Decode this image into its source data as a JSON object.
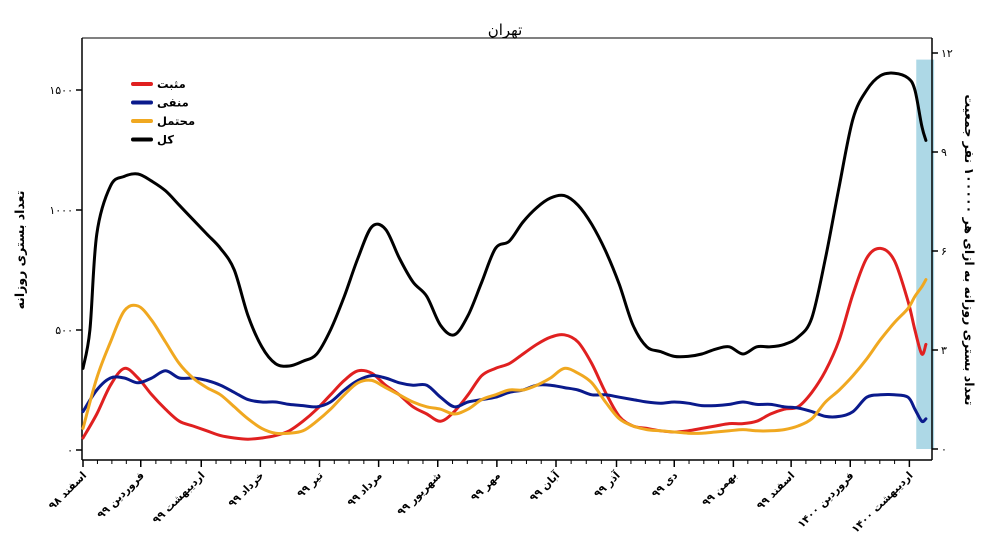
{
  "chart_data": {
    "type": "line",
    "title": "تهران",
    "ylabel_left": "تعداد بستری روزانه",
    "ylabel_right": "تعداد بستری روزانه به ازای هر ۱۰۰۰۰۰ نفر جمعیت",
    "xlim": [
      0,
      61
    ],
    "ylim_left": [
      -50,
      1650
    ],
    "ylim_right": [
      0,
      12
    ],
    "yticks_left": [
      0,
      500,
      1000,
      1500
    ],
    "ytick_labels_left": [
      "۰",
      "۵۰۰",
      "۱۰۰۰",
      "۱۵۰۰"
    ],
    "yticks_right": [
      0,
      3,
      6,
      9,
      12
    ],
    "ytick_labels_right": [
      "۰",
      "۳",
      "۶",
      "۹",
      "۱۲"
    ],
    "xticks": [
      0,
      4.2,
      8.6,
      12.9,
      17.2,
      21.5,
      25.8,
      30.1,
      34.4,
      38.8,
      43.0,
      47.3,
      51.5,
      55.8,
      60.1
    ],
    "xtick_labels": [
      "اسفند ۹۸",
      "فروردین ۹۹",
      "اردیبهشت ۹۹",
      "خرداد ۹۹",
      "تیر ۹۹",
      "مرداد ۹۹",
      "شهریور ۹۹",
      "مهر ۹۹",
      "آبان ۹۹",
      "آذر ۹۹",
      "دی ۹۹",
      "بهمن ۹۹",
      "اسفند ۹۹",
      "فروردین ۱۴۰۰",
      "اردیبهشت ۱۴۰۰"
    ],
    "grid": false,
    "legend_position": "top-left",
    "highlight_band": {
      "x_range": [
        60.6,
        61.9
      ],
      "color": "#add8e6"
    },
    "series": [
      {
        "name": "مثبت",
        "color": "#e02020",
        "x": [
          0,
          1,
          2,
          3,
          4,
          5,
          6,
          7,
          8,
          9,
          10,
          11,
          12,
          13,
          14,
          15,
          16,
          17,
          18,
          19,
          20,
          21,
          22,
          23,
          24,
          25,
          26,
          27,
          28,
          29,
          30,
          31,
          32,
          33,
          34,
          35,
          36,
          37,
          38,
          39,
          40,
          41,
          42,
          43,
          44,
          45,
          46,
          47,
          48,
          49,
          50,
          51,
          52,
          53,
          54,
          55,
          56,
          57,
          58,
          59,
          60,
          60.5,
          61,
          61.3
        ],
        "y": [
          50,
          150,
          270,
          340,
          300,
          230,
          170,
          120,
          100,
          80,
          60,
          50,
          45,
          50,
          60,
          80,
          120,
          170,
          230,
          290,
          330,
          320,
          270,
          230,
          180,
          150,
          120,
          160,
          230,
          310,
          340,
          360,
          400,
          440,
          470,
          480,
          450,
          360,
          240,
          140,
          100,
          90,
          80,
          75,
          80,
          90,
          100,
          110,
          110,
          120,
          150,
          170,
          180,
          240,
          330,
          460,
          650,
          800,
          840,
          790,
          620,
          500,
          400,
          440
        ]
      },
      {
        "name": "منفی",
        "color": "#0a1a8c",
        "x": [
          0,
          1,
          2,
          3,
          4,
          5,
          6,
          7,
          8,
          9,
          10,
          11,
          12,
          13,
          14,
          15,
          16,
          17,
          18,
          19,
          20,
          21,
          22,
          23,
          24,
          25,
          26,
          27,
          28,
          29,
          30,
          31,
          32,
          33,
          34,
          35,
          36,
          37,
          38,
          39,
          40,
          41,
          42,
          43,
          44,
          45,
          46,
          47,
          48,
          49,
          50,
          51,
          52,
          53,
          54,
          55,
          56,
          57,
          58,
          59,
          60,
          60.5,
          61,
          61.3
        ],
        "y": [
          160,
          250,
          300,
          300,
          280,
          300,
          330,
          300,
          300,
          290,
          270,
          240,
          210,
          200,
          200,
          190,
          185,
          180,
          200,
          250,
          290,
          310,
          300,
          280,
          270,
          270,
          220,
          180,
          200,
          210,
          220,
          240,
          250,
          270,
          270,
          260,
          250,
          230,
          230,
          220,
          210,
          200,
          195,
          200,
          195,
          185,
          185,
          190,
          200,
          190,
          190,
          180,
          175,
          160,
          140,
          140,
          160,
          220,
          230,
          230,
          220,
          170,
          120,
          130
        ]
      },
      {
        "name": "محتمل",
        "color": "#f0a820",
        "x": [
          0,
          1,
          2,
          3,
          4,
          5,
          6,
          7,
          8,
          9,
          10,
          11,
          12,
          13,
          14,
          15,
          16,
          17,
          18,
          19,
          20,
          21,
          22,
          23,
          24,
          25,
          26,
          27,
          28,
          29,
          30,
          31,
          32,
          33,
          34,
          35,
          36,
          37,
          38,
          39,
          40,
          41,
          42,
          43,
          44,
          45,
          46,
          47,
          48,
          49,
          50,
          51,
          52,
          53,
          54,
          55,
          56,
          57,
          58,
          59,
          60,
          60.5,
          61,
          61.3
        ],
        "y": [
          90,
          300,
          450,
          580,
          600,
          540,
          450,
          360,
          300,
          260,
          230,
          180,
          130,
          90,
          70,
          70,
          80,
          120,
          170,
          230,
          280,
          290,
          260,
          230,
          200,
          180,
          170,
          150,
          170,
          210,
          230,
          250,
          250,
          270,
          300,
          340,
          320,
          280,
          200,
          130,
          100,
          85,
          80,
          75,
          70,
          70,
          75,
          80,
          85,
          80,
          80,
          85,
          100,
          130,
          200,
          250,
          310,
          380,
          460,
          530,
          590,
          640,
          680,
          710
        ]
      },
      {
        "name": "کل",
        "color": "#000000",
        "x": [
          0,
          0.5,
          1,
          2,
          3,
          4,
          5,
          6,
          7,
          8,
          9,
          10,
          11,
          12,
          13,
          14,
          15,
          16,
          17,
          18,
          19,
          20,
          21,
          22,
          23,
          24,
          25,
          26,
          27,
          28,
          29,
          30,
          31,
          32,
          33,
          34,
          35,
          36,
          37,
          38,
          39,
          40,
          41,
          42,
          43,
          44,
          45,
          46,
          47,
          48,
          49,
          50,
          51,
          52,
          53,
          54,
          55,
          56,
          57,
          58,
          59,
          60,
          60.5,
          61,
          61.3
        ],
        "y": [
          340,
          500,
          900,
          1100,
          1140,
          1150,
          1120,
          1080,
          1020,
          960,
          900,
          840,
          750,
          560,
          430,
          360,
          350,
          370,
          400,
          500,
          640,
          800,
          930,
          920,
          800,
          700,
          640,
          520,
          480,
          560,
          700,
          840,
          870,
          950,
          1010,
          1050,
          1060,
          1020,
          940,
          830,
          690,
          520,
          430,
          410,
          390,
          390,
          400,
          420,
          430,
          400,
          430,
          430,
          440,
          470,
          550,
          800,
          1100,
          1380,
          1500,
          1560,
          1570,
          1550,
          1500,
          1350,
          1290
        ]
      }
    ]
  }
}
